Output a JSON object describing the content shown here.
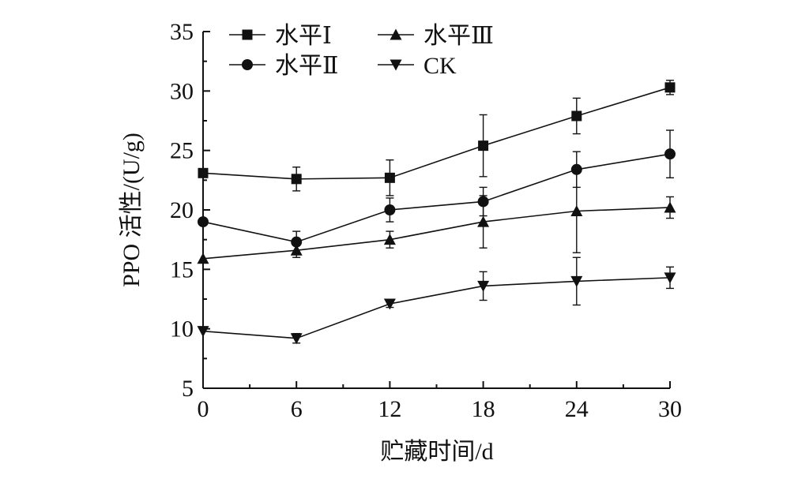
{
  "chart_data": {
    "type": "line",
    "title": "",
    "xlabel": "贮藏时间/d",
    "ylabel": "PPO 活性/(U/g)",
    "x": [
      0,
      6,
      12,
      18,
      24,
      30
    ],
    "xlim": [
      0,
      30
    ],
    "ylim": [
      5,
      35
    ],
    "xticks": [
      0,
      6,
      12,
      18,
      24,
      30
    ],
    "yticks": [
      5,
      10,
      15,
      20,
      25,
      30,
      35
    ],
    "grid": false,
    "legend_position": "top-left",
    "series": [
      {
        "name": "水平Ⅰ",
        "marker": "square",
        "values": [
          23.1,
          22.6,
          22.7,
          25.4,
          27.9,
          30.3
        ],
        "errors": [
          0,
          1.0,
          1.5,
          2.6,
          1.5,
          0.6
        ]
      },
      {
        "name": "水平Ⅱ",
        "marker": "circle",
        "values": [
          19.0,
          17.3,
          20.0,
          20.7,
          23.4,
          24.7
        ],
        "errors": [
          0,
          0.9,
          1.0,
          1.2,
          1.5,
          2.0
        ]
      },
      {
        "name": "水平Ⅲ",
        "marker": "triangle-up",
        "values": [
          15.9,
          16.6,
          17.5,
          19.0,
          19.9,
          20.2
        ],
        "errors": [
          0,
          0.6,
          0.7,
          2.2,
          3.5,
          0.9
        ]
      },
      {
        "name": "CK",
        "marker": "triangle-down",
        "values": [
          9.8,
          9.2,
          12.1,
          13.6,
          14.0,
          14.3
        ],
        "errors": [
          0,
          0.4,
          0.3,
          1.2,
          2.0,
          0.9
        ]
      }
    ]
  }
}
